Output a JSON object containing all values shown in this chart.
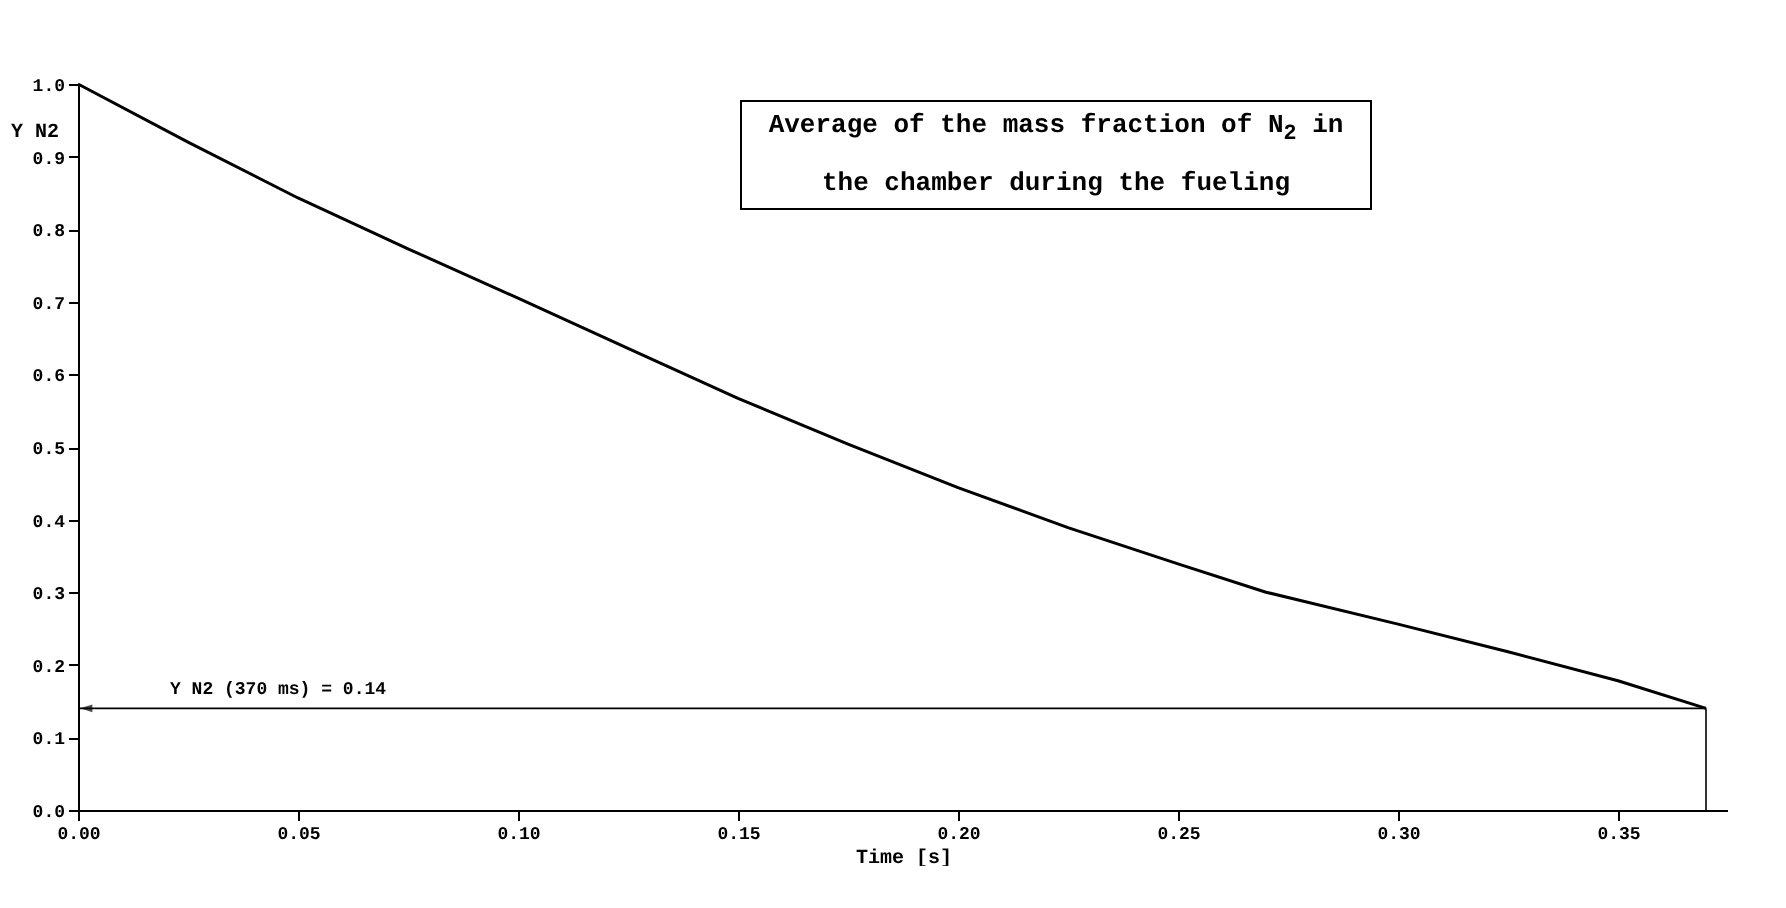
{
  "chart_data": {
    "type": "line",
    "title": "Average of the mass fraction of N$_{2}$ in the chamber during the fueling",
    "xlabel": "Time [s]",
    "ylabel": "Y N2",
    "x": [
      0,
      0.025,
      0.05,
      0.075,
      0.1,
      0.125,
      0.15,
      0.175,
      0.2,
      0.225,
      0.25,
      0.27,
      0.3,
      0.325,
      0.35,
      0.37
    ],
    "series": [
      {
        "color": "#000000",
        "values": [
          1.0,
          0.92,
          0.843,
          0.773,
          0.705,
          0.636,
          0.567,
          0.504,
          0.444,
          0.389,
          0.339,
          0.3,
          0.256,
          0.218,
          0.178,
          0.14
        ]
      }
    ],
    "xlim": [
      0,
      0.375
    ],
    "ylim": [
      0,
      1
    ],
    "xticks": [
      {
        "value": 0,
        "label": "0.00"
      },
      {
        "value": 0.05,
        "label": "0.05"
      },
      {
        "value": 0.1,
        "label": "0.10"
      },
      {
        "value": 0.15,
        "label": "0.15"
      },
      {
        "value": 0.2,
        "label": "0.20"
      },
      {
        "value": 0.25,
        "label": "0.25"
      },
      {
        "value": 0.3,
        "label": "0.30"
      },
      {
        "value": 0.35,
        "label": "0.35"
      }
    ],
    "yticks": [
      {
        "value": 0,
        "label": "0.0"
      },
      {
        "value": 0.1,
        "label": "0.1"
      },
      {
        "value": 0.2,
        "label": "0.2"
      },
      {
        "value": 0.3,
        "label": "0.3"
      },
      {
        "value": 0.4,
        "label": "0.4"
      },
      {
        "value": 0.5,
        "label": "0.5"
      },
      {
        "value": 0.6,
        "label": "0.6"
      },
      {
        "value": 0.7,
        "label": "0.7"
      },
      {
        "value": 0.8,
        "label": "0.8"
      },
      {
        "value": 0.9,
        "label": "0.9"
      },
      {
        "value": 1,
        "label": "1.0"
      }
    ],
    "ref_lines": [
      {
        "axis": "y",
        "value": 0.14,
        "label": "Y N2 (370 ms) = 0.14",
        "color": "#000000"
      },
      {
        "axis": "x",
        "value": 0.37,
        "color": "#000000"
      }
    ],
    "grid": false,
    "marker": "none",
    "line_style": "solid"
  }
}
